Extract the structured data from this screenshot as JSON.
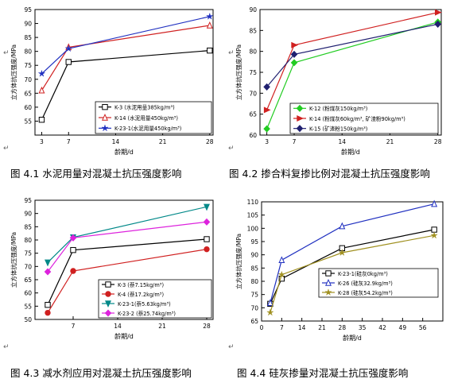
{
  "chart_data": [
    {
      "type": "line",
      "ylabel": "立方体抗压强度/MPa",
      "xlabel": "龄期/d",
      "x": [
        3,
        7,
        28
      ],
      "xticks": [
        3,
        7,
        14,
        21,
        28
      ],
      "xlim": [
        2,
        28.5
      ],
      "ylim": [
        50,
        95
      ],
      "yticks": [
        55,
        60,
        65,
        70,
        75,
        80,
        85,
        90,
        95
      ],
      "legend_position": "bottom-right",
      "series": [
        {
          "name": "K-3 (水泥用量385kg/m³)",
          "values": [
            55.5,
            76.2,
            80.3
          ],
          "color": "#000000",
          "marker": "square"
        },
        {
          "name": "K-14 (水泥用量450kg/m³)",
          "values": [
            66.0,
            81.5,
            89.3
          ],
          "color": "#d02020",
          "marker": "triangle-up"
        },
        {
          "name": "K-23-1(水泥用量450kg/m³)",
          "values": [
            72.0,
            81.0,
            92.5
          ],
          "color": "#2030c0",
          "marker": "star"
        }
      ]
    },
    {
      "type": "line",
      "ylabel": "立方体抗压强度/MPa",
      "xlabel": "龄期/d",
      "x": [
        3,
        7,
        28
      ],
      "xticks": [
        3,
        7,
        14,
        21,
        28
      ],
      "xlim": [
        2,
        28.5
      ],
      "ylim": [
        60,
        90
      ],
      "yticks": [
        60,
        65,
        70,
        75,
        80,
        85,
        90
      ],
      "legend_position": "bottom-right",
      "series": [
        {
          "name": "K-12 (粉煤灰150kg/m³)",
          "values": [
            61.5,
            77.3,
            87.0
          ],
          "color": "#22cc22",
          "marker": "diamond"
        },
        {
          "name": "K-14 (粉煤灰60kg/m³, 矿渣粉90kg/m³)",
          "values": [
            66.0,
            81.5,
            89.3
          ],
          "color": "#d02020",
          "marker": "triangle-right"
        },
        {
          "name": "K-15 (矿渣粉150kg/m³)",
          "values": [
            71.5,
            79.3,
            86.5
          ],
          "color": "#202070",
          "marker": "diamond"
        }
      ]
    },
    {
      "type": "line",
      "ylabel": "立方体抗压强度/MPa",
      "xlabel": "龄期/d",
      "x": [
        3,
        7,
        28
      ],
      "xticks": [
        7,
        14,
        21,
        28
      ],
      "xlim": [
        1,
        29
      ],
      "ylim": [
        50,
        95
      ],
      "yticks": [
        50,
        55,
        60,
        65,
        70,
        75,
        80,
        85,
        90,
        95
      ],
      "legend_position": "bottom-right",
      "series": [
        {
          "name": "K-3 (萘7.15kg/m³)",
          "values": [
            55.5,
            76.2,
            80.3
          ],
          "color": "#000000",
          "marker": "square"
        },
        {
          "name": "K-4 (萘17.2kg/m³)",
          "values": [
            52.5,
            68.3,
            76.5
          ],
          "color": "#d02020",
          "marker": "circle"
        },
        {
          "name": "K-23-1(萘5.63kg/m³)",
          "values": [
            71.5,
            81.0,
            92.5
          ],
          "color": "#008888",
          "marker": "triangle-down"
        },
        {
          "name": "K-23-2 (萘25.74kg/m³)",
          "values": [
            68.0,
            80.8,
            86.8
          ],
          "color": "#dd22dd",
          "marker": "diamond"
        }
      ]
    },
    {
      "type": "line",
      "ylabel": "立方体抗压强度/MPa",
      "xlabel": "龄期/d",
      "x": [
        3,
        7,
        28,
        60
      ],
      "xticks": [
        0,
        7,
        14,
        21,
        28,
        35,
        42,
        49,
        56
      ],
      "xlim": [
        0,
        63
      ],
      "ylim": [
        65,
        110
      ],
      "yticks": [
        65,
        70,
        75,
        80,
        85,
        90,
        95,
        100,
        105,
        110
      ],
      "legend_position": "center-right",
      "series": [
        {
          "name": "K-23-1(硅灰0kg/m³)",
          "values": [
            71.5,
            81.0,
            92.5,
            99.5
          ],
          "color": "#000000",
          "marker": "square"
        },
        {
          "name": "K-26 (硅灰32.9kg/m³)",
          "values": [
            71.8,
            88.0,
            100.8,
            109.2
          ],
          "color": "#2030c0",
          "marker": "triangle-up"
        },
        {
          "name": "K-28 (硅灰54.2kg/m³)",
          "values": [
            68.2,
            82.5,
            90.8,
            97.3
          ],
          "color": "#a09020",
          "marker": "star"
        }
      ]
    }
  ],
  "captions": [
    "图 4.1 水泥用量对混凝土抗压强度影响",
    "图 4.2 掺合料复掺比例对混凝土抗压强度影响",
    "图 4.3 减水剂应用对混凝土抗压强度影响",
    "图 4.4 硅灰掺量对混凝土抗压强度影响"
  ],
  "para_mark": "↵"
}
